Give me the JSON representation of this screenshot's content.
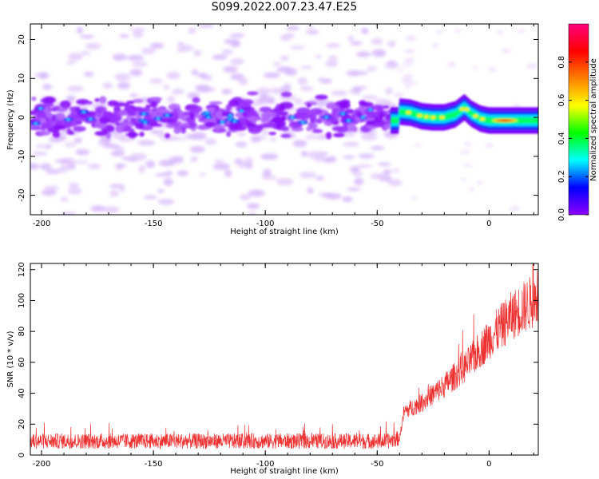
{
  "title": "S099.2022.007.23.47.E25",
  "chart_data": [
    {
      "type": "heatmap",
      "xlabel": "Height of straight line (km)",
      "ylabel": "Frequency (Hz)",
      "xlim": [
        -205,
        22
      ],
      "ylim": [
        -25,
        24
      ],
      "xticks": [
        -200,
        -150,
        -100,
        -50,
        0
      ],
      "yticks": [
        -20,
        -10,
        0,
        10,
        20
      ],
      "colorbar": {
        "label": "Normalized spectral amplitude",
        "range": [
          0,
          1
        ],
        "ticks": [
          "0.0",
          "0.2",
          "0.4",
          "0.6",
          "0.8"
        ],
        "colormap": "gist_rainbow",
        "stops": [
          "#8f00ff",
          "#0000ff",
          "#00ffff",
          "#00ff00",
          "#ffff00",
          "#ff8000",
          "#ff0000",
          "#ff0080"
        ]
      },
      "ridge": [
        {
          "x": -40,
          "y": 1.5
        },
        {
          "x": -35,
          "y": 1.2
        },
        {
          "x": -30,
          "y": 0.3
        },
        {
          "x": -25,
          "y": 0.0
        },
        {
          "x": -20,
          "y": 0.0
        },
        {
          "x": -15,
          "y": 0.8
        },
        {
          "x": -11,
          "y": 2.6
        },
        {
          "x": -8,
          "y": 1.0
        },
        {
          "x": -4,
          "y": -0.3
        },
        {
          "x": 0,
          "y": -0.8
        },
        {
          "x": 10,
          "y": -0.8
        },
        {
          "x": 20,
          "y": -0.8
        }
      ]
    },
    {
      "type": "line",
      "xlabel": "Height of straight line (km)",
      "ylabel": "SNR (10 * v/v)",
      "xlim": [
        -205,
        22
      ],
      "ylim": [
        0,
        124
      ],
      "xticks": [
        -200,
        -150,
        -100,
        -50,
        0
      ],
      "yticks": [
        0,
        20,
        40,
        60,
        80,
        100,
        120
      ],
      "color": "#ee3333",
      "trend": [
        {
          "x": -205,
          "y": 9
        },
        {
          "x": -45,
          "y": 9
        },
        {
          "x": -40,
          "y": 11
        },
        {
          "x": -38,
          "y": 28
        },
        {
          "x": -30,
          "y": 34
        },
        {
          "x": -20,
          "y": 45
        },
        {
          "x": -10,
          "y": 58
        },
        {
          "x": 0,
          "y": 75
        },
        {
          "x": 10,
          "y": 90
        },
        {
          "x": 22,
          "y": 102
        }
      ]
    }
  ]
}
